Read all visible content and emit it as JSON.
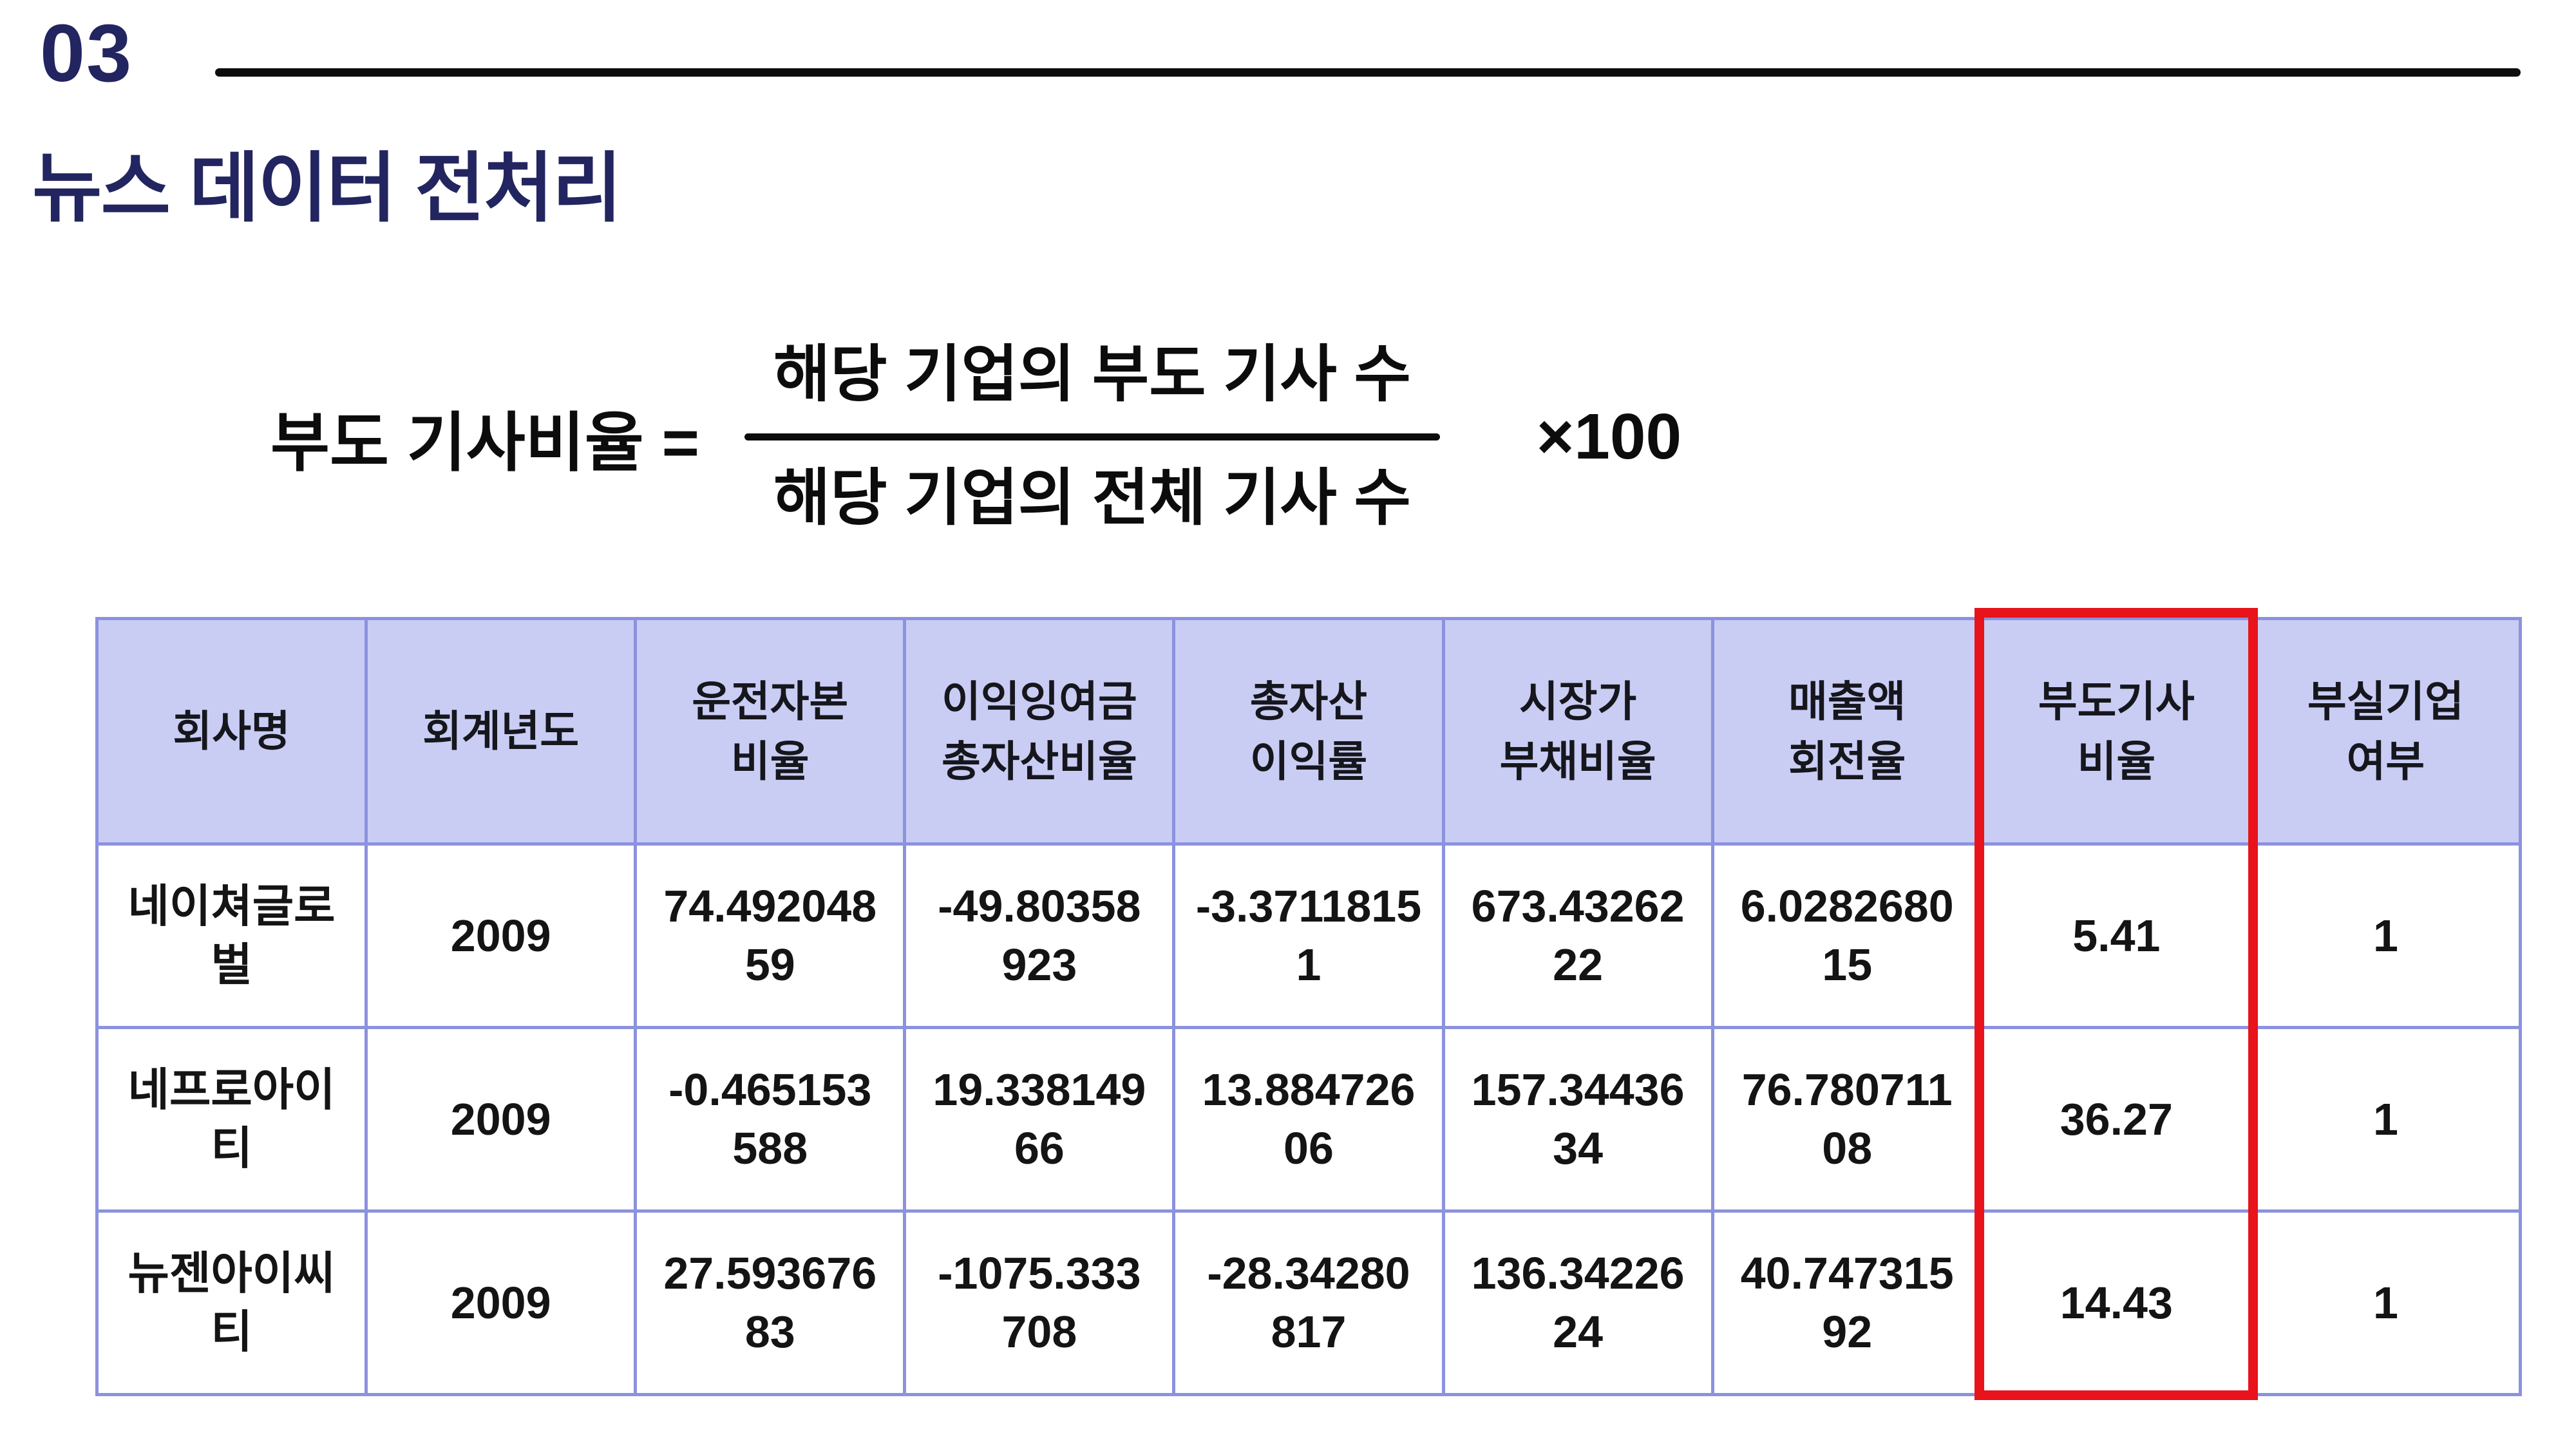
{
  "slide": {
    "section_number": "03",
    "title": "뉴스 데이터 전처리"
  },
  "formula": {
    "label": "부도 기사비율 =",
    "numerator": "해당 기업의 부도 기사 수",
    "denominator": "해당 기업의 전체 기사 수",
    "multiplier": "×100"
  },
  "table": {
    "columns": [
      "회사명",
      "회계년도",
      "운전자본\n비율",
      "이익잉여금\n총자산비율",
      "총자산\n이익률",
      "시장가\n부채비율",
      "매출액\n회전율",
      "부도기사\n비율",
      "부실기업\n여부"
    ],
    "rows": [
      {
        "cells": [
          "네이쳐글로벌",
          "2009",
          "74.49204859",
          "-49.80358923",
          "-3.37118151",
          "673.4326222",
          "6.028268015",
          "5.41",
          "1"
        ]
      },
      {
        "cells": [
          "네프로아이티",
          "2009",
          "-0.465153588",
          "19.33814966",
          "13.88472606",
          "157.3443634",
          "76.78071108",
          "36.27",
          "1"
        ]
      },
      {
        "cells": [
          "뉴젠아이씨티",
          "2009",
          "27.59367683",
          "-1075.333708",
          "-28.34280817",
          "136.3422624",
          "40.74731592",
          "14.43",
          "1"
        ]
      }
    ],
    "highlighted_column": "부도기사 비율"
  },
  "colors": {
    "title": "#22255f",
    "table_border": "#8b92de",
    "header_bg": "#c9cdf4",
    "highlight": "#e8131b",
    "text": "#141414"
  }
}
